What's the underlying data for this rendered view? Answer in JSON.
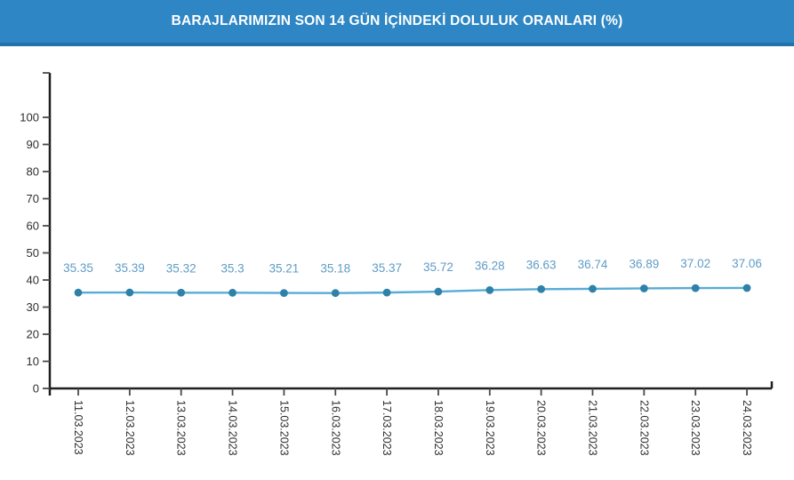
{
  "header": {
    "title": "BARAJLARIMIZIN SON 14 GÜN İÇİNDEKİ DOLULUK ORANLARI (%)",
    "background_color": "#2e86c4",
    "bottom_border_color": "#2173a9",
    "text_color": "#ffffff"
  },
  "chart_data": {
    "type": "line",
    "title": "BARAJLARIMIZIN SON 14 GÜN İÇİNDEKİ DOLULUK ORANLARI (%)",
    "xlabel": "",
    "ylabel": "",
    "x": [
      "11.03.2023",
      "12.03.2023",
      "13.03.2023",
      "14.03.2023",
      "15.03.2023",
      "16.03.2023",
      "17.03.2023",
      "18.03.2023",
      "19.03.2023",
      "20.03.2023",
      "21.03.2023",
      "22.03.2023",
      "23.03.2023",
      "24.03.2023"
    ],
    "values": [
      35.35,
      35.39,
      35.32,
      35.3,
      35.21,
      35.18,
      35.37,
      35.72,
      36.28,
      36.63,
      36.74,
      36.89,
      37.02,
      37.06
    ],
    "point_labels": [
      "35.35",
      "35.39",
      "35.32",
      "35.3",
      "35.21",
      "35.18",
      "35.37",
      "35.72",
      "36.28",
      "36.63",
      "36.74",
      "36.89",
      "37.02",
      "37.06"
    ],
    "ylim": [
      0,
      100
    ],
    "yticks": [
      0,
      10,
      20,
      30,
      40,
      50,
      60,
      70,
      80,
      90,
      100
    ],
    "grid": false,
    "legend": false,
    "x_label_rotation_deg": 90,
    "colors": {
      "line": "#58acd6",
      "marker": "#2e81a8",
      "point_label": "#5f9cc6",
      "axis": "#1f1f1f",
      "tick": "#4a4a4a",
      "tick_label": "#2f2f2f"
    }
  }
}
